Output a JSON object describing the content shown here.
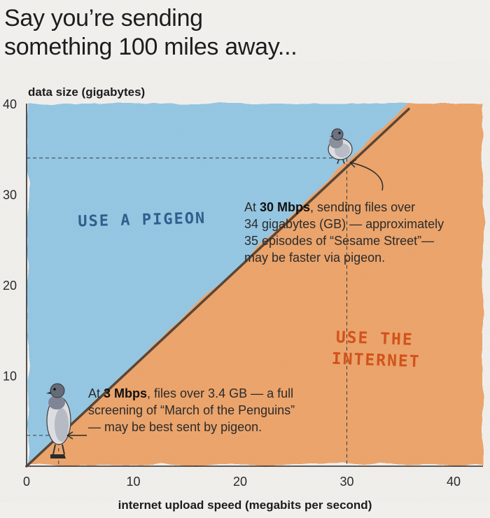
{
  "headline": {
    "line1": "Say you’re sending",
    "line2": "something 100 miles away..."
  },
  "colors": {
    "pigeon_region": "#8fc4e3",
    "internet_region": "#ec9f63",
    "diagonal_line": "#5a4636",
    "background": "#f1efec",
    "pigeon_label": "#2f5f8c",
    "internet_label": "#d2521c"
  },
  "chart_data": {
    "type": "area",
    "ylabel": "data size (gigabytes)",
    "xlabel": "internet upload speed (megabits per second)",
    "xlim": [
      0,
      40
    ],
    "ylim": [
      0,
      40
    ],
    "x_ticks": [
      "0",
      "10",
      "20",
      "30",
      "40"
    ],
    "y_ticks": [
      "40",
      "30",
      "20",
      "10"
    ],
    "boundary_line": {
      "x": [
        0,
        40
      ],
      "y": [
        0,
        40
      ]
    },
    "regions": [
      {
        "label": "USE A PIGEON",
        "side": "above line",
        "color": "#8fc4e3"
      },
      {
        "label_lines": [
          "USE THE",
          "INTERNET"
        ],
        "side": "below line",
        "color": "#ec9f63"
      }
    ],
    "highlighted_points": [
      {
        "x": 30,
        "y": 34
      },
      {
        "x": 3,
        "y": 3.4
      }
    ],
    "grid": false
  },
  "annotations": {
    "high": {
      "line1_pre": "At ",
      "line1_bold": "30 Mbps",
      "line1_post": ", sending files over",
      "line2": "34 gigabytes (GB) — approximately",
      "line3": "35 episodes of “Sesame Street”—",
      "line4": "may be faster via pigeon."
    },
    "low": {
      "line1_pre": "At ",
      "line1_bold": "3 Mbps",
      "line1_post": ", files over 3.4 GB — a full",
      "line2": "screening of “March of the Penguins”",
      "line3": "— may be best sent by pigeon."
    }
  },
  "icons": [
    "pigeon-icon",
    "arrow-icon"
  ]
}
